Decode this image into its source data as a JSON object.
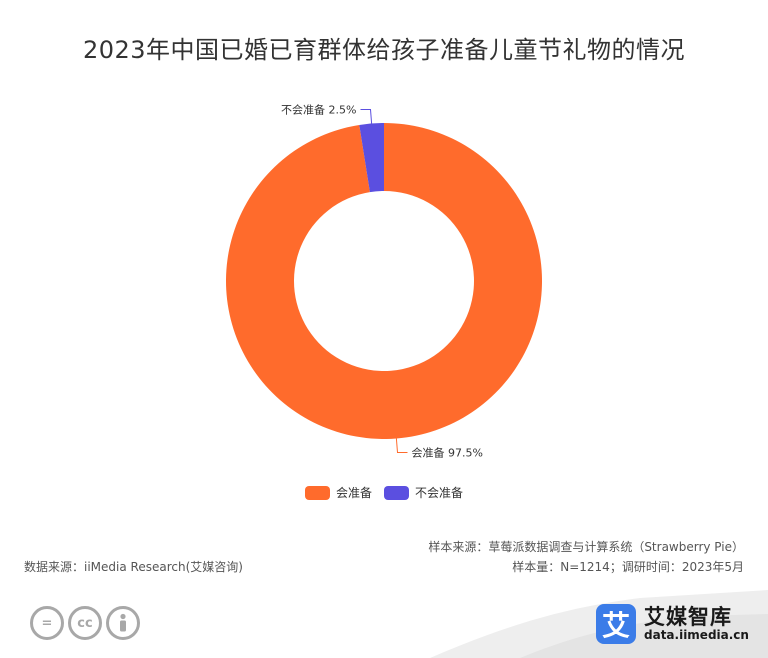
{
  "title": "2023年中国已婚已育群体给孩子准备儿童节礼物的情况",
  "chart_data": {
    "type": "pie",
    "donut": true,
    "slices": [
      {
        "name": "会准备",
        "value": 97.5,
        "color": "#ff6b2c",
        "label": "会准备 97.5%"
      },
      {
        "name": "不会准备",
        "value": 2.5,
        "color": "#5b4fe0",
        "label": "不会准备 2.5%"
      }
    ],
    "legend_position": "bottom"
  },
  "legend": [
    {
      "label": "会准备",
      "color": "#ff6b2c"
    },
    {
      "label": "不会准备",
      "color": "#5b4fe0"
    }
  ],
  "footer": {
    "source": "数据来源：iiMedia Research(艾媒咨询)",
    "sample_source": "样本来源：草莓派数据调查与计算系统（Strawberry Pie）",
    "sample_info": "样本量：N=1214；调研时间：2023年5月"
  },
  "branding": {
    "logo_char": "艾",
    "name": "艾媒智库",
    "url": "data.iimedia.cn"
  },
  "icons": [
    "equals-icon",
    "cc-icon",
    "person-icon"
  ]
}
